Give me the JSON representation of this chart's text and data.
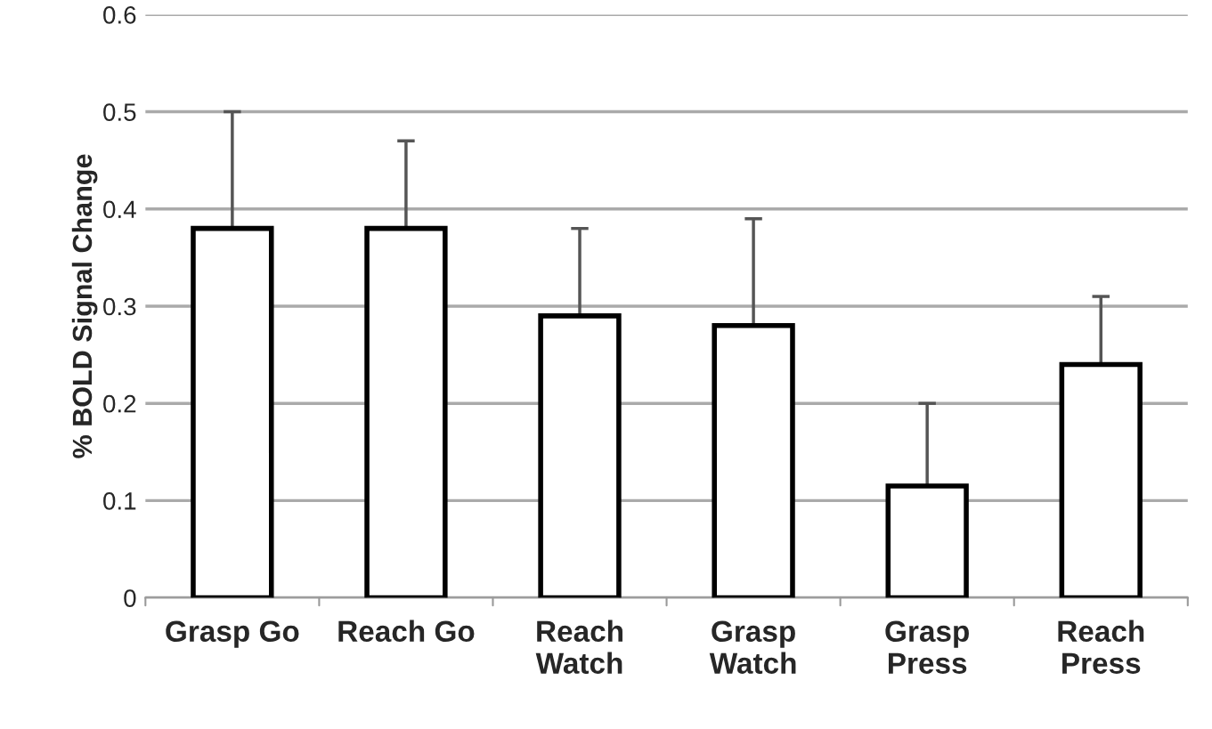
{
  "chart_data": {
    "type": "bar",
    "ylabel": "% BOLD Signal Change",
    "categories": [
      "Grasp Go",
      "Reach Go",
      "Reach\nWatch",
      "Grasp\nWatch",
      "Grasp\nPress",
      "Reach\nPress"
    ],
    "values": [
      0.38,
      0.38,
      0.29,
      0.28,
      0.115,
      0.24
    ],
    "errors": [
      [
        0.38,
        0.5
      ],
      [
        0.38,
        0.47
      ],
      [
        0.29,
        0.38
      ],
      [
        0.28,
        0.39
      ],
      [
        0.115,
        0.2
      ],
      [
        0.24,
        0.31
      ]
    ],
    "color": "#ffffff",
    "ylim": [
      0,
      0.6
    ],
    "yticks": [
      0,
      0.1,
      0.2,
      0.3,
      0.4,
      0.5,
      0.6
    ],
    "grid": "y"
  }
}
